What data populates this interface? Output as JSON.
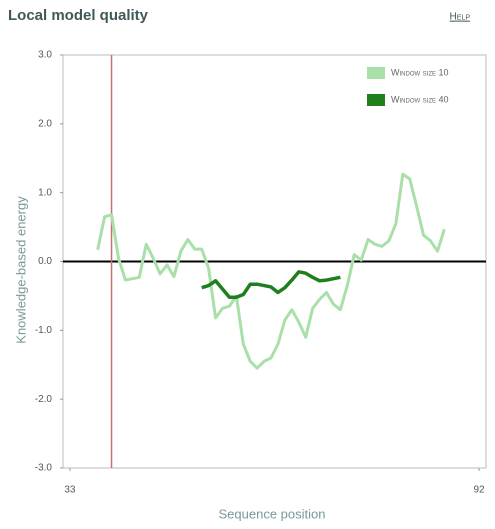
{
  "chart_data": {
    "type": "line",
    "title": "Local model quality",
    "help": "Help",
    "x_label": "Sequence position",
    "y_label": "Knowledge-based energy",
    "xlim": [
      32,
      93
    ],
    "xticks": [
      33,
      92
    ],
    "ylim": [
      -3,
      3
    ],
    "yticks": [
      {
        "value": -3,
        "label": "-3.0"
      },
      {
        "value": -2,
        "label": "-2.0"
      },
      {
        "value": -1,
        "label": "-1.0"
      },
      {
        "value": 0,
        "label": "0.0"
      },
      {
        "value": 1,
        "label": "1.0"
      },
      {
        "value": 2,
        "label": "2.0"
      },
      {
        "value": 3,
        "label": "3.0"
      }
    ],
    "highlight_x": 39,
    "highlight_color": "#c87070",
    "legend": "top-right",
    "series": [
      {
        "name": "Window size 10",
        "color": "#a9dfa9",
        "x": [
          37,
          38,
          39,
          40,
          41,
          42,
          43,
          44,
          45,
          46,
          47,
          48,
          49,
          50,
          51,
          52,
          53,
          54,
          55,
          56,
          57,
          58,
          59,
          60,
          61,
          62,
          63,
          64,
          65,
          66,
          67,
          68,
          69,
          70,
          71,
          72,
          73,
          74,
          75,
          76,
          77,
          78,
          79,
          80,
          81,
          82,
          83,
          84,
          85,
          86,
          87
        ],
        "values": [
          0.17,
          0.65,
          0.68,
          0.05,
          -0.27,
          -0.25,
          -0.23,
          0.25,
          0.05,
          -0.18,
          -0.05,
          -0.22,
          0.15,
          0.32,
          0.18,
          0.18,
          -0.1,
          -0.82,
          -0.68,
          -0.65,
          -0.5,
          -1.2,
          -1.45,
          -1.55,
          -1.45,
          -1.4,
          -1.2,
          -0.85,
          -0.7,
          -0.88,
          -1.1,
          -0.68,
          -0.55,
          -0.45,
          -0.62,
          -0.7,
          -0.35,
          0.1,
          0.02,
          0.32,
          0.25,
          0.22,
          0.3,
          0.55,
          1.27,
          1.2,
          0.8,
          0.38,
          0.3,
          0.15,
          0.47
        ]
      },
      {
        "name": "Window size 40",
        "color": "#1f7f1f",
        "x": [
          52,
          53,
          54,
          55,
          56,
          57,
          58,
          59,
          60,
          61,
          62,
          63,
          64,
          65,
          66,
          67,
          68,
          69,
          70,
          71,
          72
        ],
        "values": [
          -0.38,
          -0.35,
          -0.28,
          -0.4,
          -0.52,
          -0.52,
          -0.48,
          -0.33,
          -0.33,
          -0.35,
          -0.37,
          -0.45,
          -0.38,
          -0.27,
          -0.15,
          -0.17,
          -0.23,
          -0.28,
          -0.27,
          -0.25,
          -0.23
        ]
      }
    ]
  }
}
